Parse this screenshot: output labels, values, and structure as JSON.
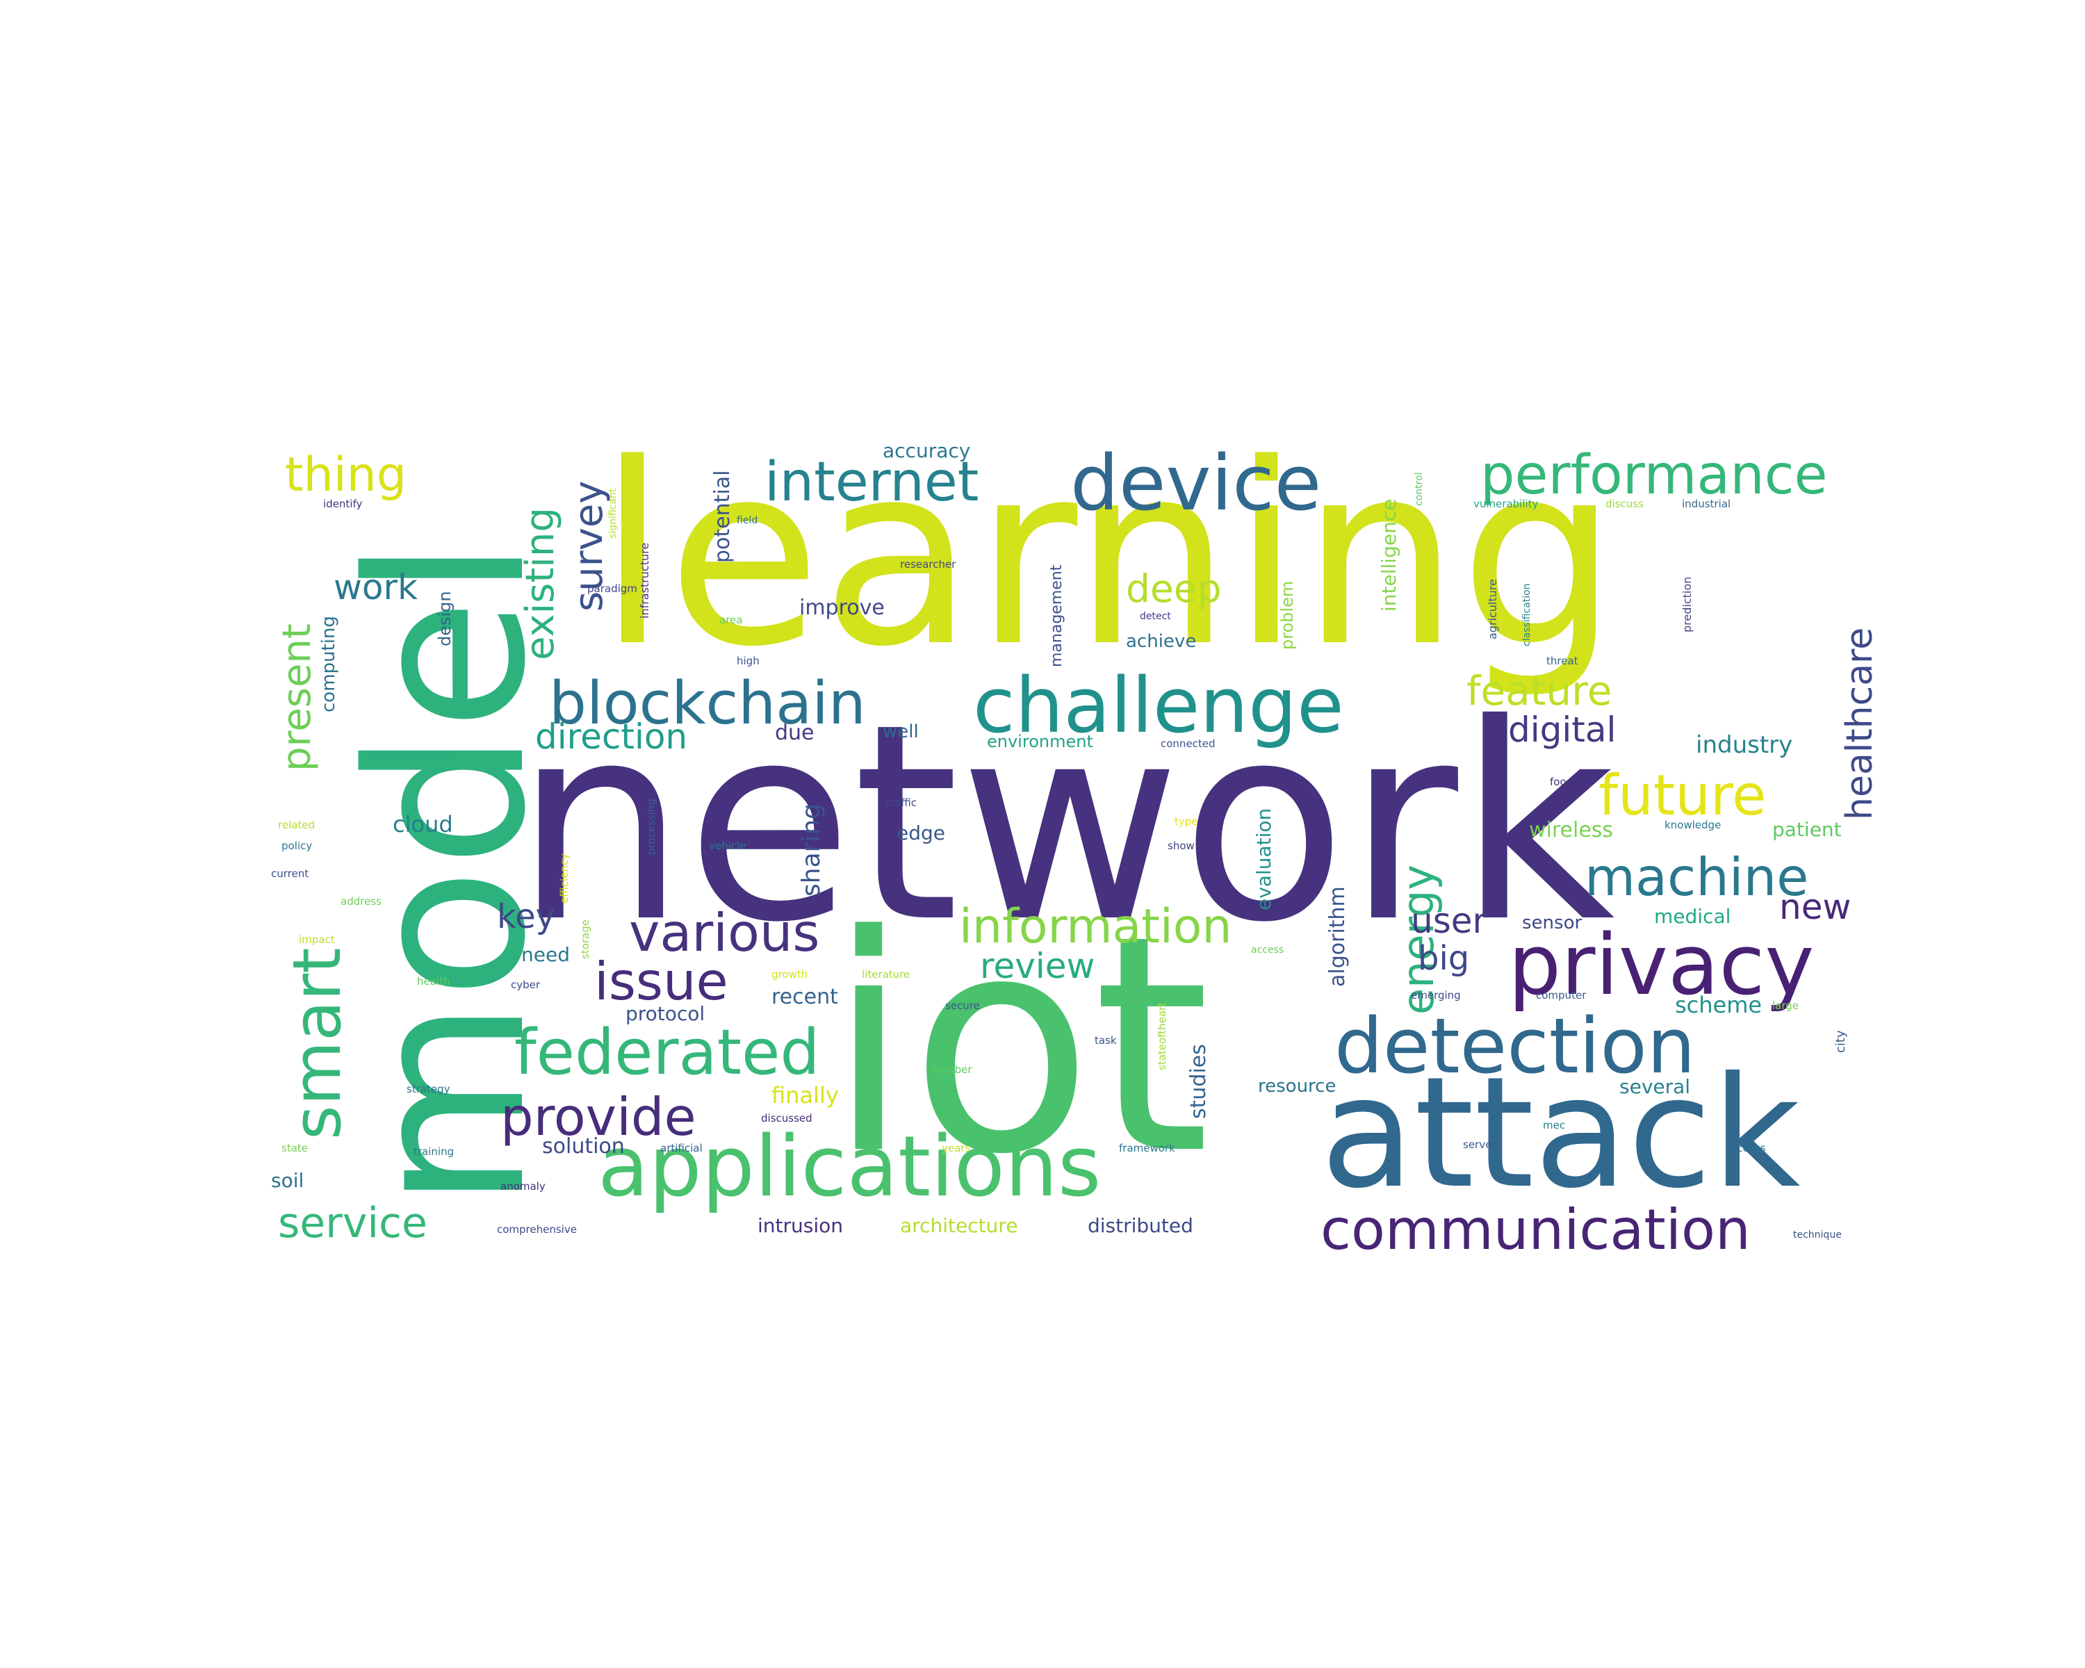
{
  "words": [
    {
      "text": "network",
      "color": "#46327e"
    },
    {
      "text": "learning",
      "color": "#d2e21b"
    },
    {
      "text": "iot",
      "color": "#4ac16d"
    },
    {
      "text": "model",
      "color": "#2db27d"
    },
    {
      "text": "attack",
      "color": "#31688e"
    },
    {
      "text": "applications",
      "color": "#4ac16d"
    },
    {
      "text": "challenge",
      "color": "#21918c"
    },
    {
      "text": "privacy",
      "color": "#482173"
    },
    {
      "text": "detection",
      "color": "#31688e"
    },
    {
      "text": "device",
      "color": "#31688e"
    },
    {
      "text": "blockchain",
      "color": "#2c728e"
    },
    {
      "text": "communication",
      "color": "#482475"
    },
    {
      "text": "federated",
      "color": "#35b779"
    },
    {
      "text": "performance",
      "color": "#35b779"
    },
    {
      "text": "internet",
      "color": "#26828e"
    },
    {
      "text": "smart",
      "color": "#35b779"
    },
    {
      "text": "various",
      "color": "#46327e"
    },
    {
      "text": "provide",
      "color": "#472d7b"
    },
    {
      "text": "information",
      "color": "#86d549"
    },
    {
      "text": "machine",
      "color": "#2a788e"
    },
    {
      "text": "future",
      "color": "#e5e419"
    },
    {
      "text": "issue",
      "color": "#472d7b"
    },
    {
      "text": "service",
      "color": "#35b779"
    },
    {
      "text": "thing",
      "color": "#d8e219"
    },
    {
      "text": "healthcare",
      "color": "#3e4989"
    },
    {
      "text": "energy",
      "color": "#2db27d"
    },
    {
      "text": "existing",
      "color": "#2db27d"
    },
    {
      "text": "survey",
      "color": "#3b528b"
    },
    {
      "text": "present",
      "color": "#6ece58"
    },
    {
      "text": "feature",
      "color": "#bddf26"
    },
    {
      "text": "direction",
      "color": "#1f9e89"
    },
    {
      "text": "digital",
      "color": "#443983"
    },
    {
      "text": "deep",
      "color": "#b5de2b"
    },
    {
      "text": "review",
      "color": "#25ab82"
    },
    {
      "text": "work",
      "color": "#2a788e"
    },
    {
      "text": "user",
      "color": "#443983"
    },
    {
      "text": "key",
      "color": "#3e4989"
    },
    {
      "text": "big",
      "color": "#3e4989"
    },
    {
      "text": "new",
      "color": "#482878"
    },
    {
      "text": "industry",
      "color": "#26828e"
    },
    {
      "text": "wireless",
      "color": "#7ad151"
    },
    {
      "text": "patient",
      "color": "#5ec962"
    },
    {
      "text": "medical",
      "color": "#22a884"
    },
    {
      "text": "sensor",
      "color": "#3e4989"
    },
    {
      "text": "scheme",
      "color": "#21918c"
    },
    {
      "text": "recent",
      "color": "#33638d"
    },
    {
      "text": "need",
      "color": "#2a788e"
    },
    {
      "text": "protocol",
      "color": "#3b528b"
    },
    {
      "text": "solution",
      "color": "#3e4989"
    },
    {
      "text": "soil",
      "color": "#2c728e"
    },
    {
      "text": "cloud",
      "color": "#287c8e"
    },
    {
      "text": "edge",
      "color": "#38588c"
    },
    {
      "text": "sharing",
      "color": "#3b528b"
    },
    {
      "text": "improve",
      "color": "#3e4989"
    },
    {
      "text": "accuracy",
      "color": "#2a788e"
    },
    {
      "text": "potential",
      "color": "#3b528b"
    },
    {
      "text": "intelligence",
      "color": "#86d549"
    },
    {
      "text": "due",
      "color": "#443983"
    },
    {
      "text": "well",
      "color": "#31688e"
    },
    {
      "text": "achieve",
      "color": "#2c728e"
    },
    {
      "text": "environment",
      "color": "#20a386"
    },
    {
      "text": "algorithm",
      "color": "#3b528b"
    },
    {
      "text": "evaluation",
      "color": "#21918c"
    },
    {
      "text": "studies",
      "color": "#33638d"
    },
    {
      "text": "resource",
      "color": "#2c728e"
    },
    {
      "text": "several",
      "color": "#26828e"
    },
    {
      "text": "finally",
      "color": "#d8e219"
    },
    {
      "text": "intrusion",
      "color": "#46327e"
    },
    {
      "text": "architecture",
      "color": "#b5de2b"
    },
    {
      "text": "distributed",
      "color": "#3e4989"
    },
    {
      "text": "computing",
      "color": "#2c728e"
    },
    {
      "text": "design",
      "color": "#33638d"
    },
    {
      "text": "problem",
      "color": "#8fd744"
    },
    {
      "text": "management",
      "color": "#3b528b"
    },
    {
      "text": "infrastructure",
      "color": "#443983"
    },
    {
      "text": "agriculture",
      "color": "#38588c"
    },
    {
      "text": "classification",
      "color": "#26828e"
    },
    {
      "text": "prediction",
      "color": "#414487"
    },
    {
      "text": "vulnerability",
      "color": "#22a884"
    },
    {
      "text": "discuss",
      "color": "#a0da39"
    },
    {
      "text": "industrial",
      "color": "#31688e"
    },
    {
      "text": "identify",
      "color": "#46327e"
    },
    {
      "text": "researcher",
      "color": "#3e4989"
    },
    {
      "text": "paradigm",
      "color": "#404688"
    },
    {
      "text": "significant",
      "color": "#b5de2b"
    },
    {
      "text": "field",
      "color": "#2c728e"
    },
    {
      "text": "area",
      "color": "#6ece58"
    },
    {
      "text": "high",
      "color": "#3b528b"
    },
    {
      "text": "detect",
      "color": "#443983"
    },
    {
      "text": "threat",
      "color": "#33638d"
    },
    {
      "text": "connected",
      "color": "#38588c"
    },
    {
      "text": "implementation",
      "color": "#25ab82"
    },
    {
      "text": "related",
      "color": "#b5de2b"
    },
    {
      "text": "policy",
      "color": "#2a788e"
    },
    {
      "text": "current",
      "color": "#3b528b"
    },
    {
      "text": "address",
      "color": "#6ece58"
    },
    {
      "text": "impact",
      "color": "#bddf26"
    },
    {
      "text": "health",
      "color": "#5ec962"
    },
    {
      "text": "cyber",
      "color": "#3e4989"
    },
    {
      "text": "strategy",
      "color": "#2c728e"
    },
    {
      "text": "training",
      "color": "#2a788e"
    },
    {
      "text": "state",
      "color": "#7ad151"
    },
    {
      "text": "anomaly",
      "color": "#46327e"
    },
    {
      "text": "comprehensive",
      "color": "#3e4989"
    },
    {
      "text": "artificial",
      "color": "#33638d"
    },
    {
      "text": "discussed",
      "color": "#472d7b"
    },
    {
      "text": "growth",
      "color": "#d2e21b"
    },
    {
      "text": "literature",
      "color": "#a5db36"
    },
    {
      "text": "secure",
      "color": "#38588c"
    },
    {
      "text": "number",
      "color": "#5ec962"
    },
    {
      "text": "task",
      "color": "#3b528b"
    },
    {
      "text": "years",
      "color": "#bddf26"
    },
    {
      "text": "framework",
      "color": "#2a788e"
    },
    {
      "text": "server",
      "color": "#38588c"
    },
    {
      "text": "mec",
      "color": "#26828e"
    },
    {
      "text": "access",
      "color": "#2c728e"
    },
    {
      "text": "technique",
      "color": "#3b528b"
    },
    {
      "text": "traffic",
      "color": "#3e4989"
    },
    {
      "text": "vehicle",
      "color": "#2a788e"
    },
    {
      "text": "storage",
      "color": "#8fd744"
    },
    {
      "text": "efficiency",
      "color": "#d8e219"
    },
    {
      "text": "processing",
      "color": "#33638d"
    },
    {
      "text": "type",
      "color": "#e5e419"
    },
    {
      "text": "show",
      "color": "#414487"
    },
    {
      "text": "stateoftheart",
      "color": "#a0da39"
    },
    {
      "text": "emerging",
      "color": "#3e4989"
    },
    {
      "text": "computer",
      "color": "#38588c"
    },
    {
      "text": "large",
      "color": "#7ad151"
    },
    {
      "text": "city",
      "color": "#38588c"
    },
    {
      "text": "food",
      "color": "#46327e"
    },
    {
      "text": "knowledge",
      "color": "#2a788e"
    },
    {
      "text": "control",
      "color": "#5ec962"
    },
    {
      "text": "access",
      "color": "#6ece58"
    }
  ]
}
